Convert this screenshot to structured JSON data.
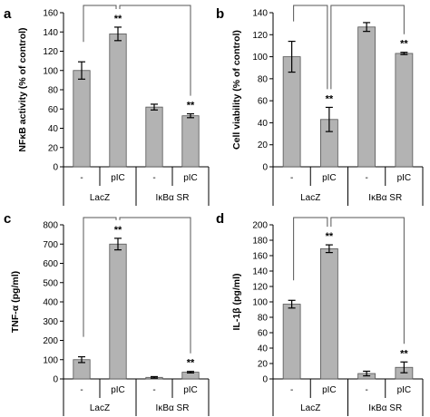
{
  "chart_data": [
    {
      "panel": "a",
      "type": "bar",
      "ylabel": "NFκB activity (% of control)",
      "ylim": [
        0,
        160
      ],
      "yticks": [
        0,
        20,
        40,
        60,
        80,
        100,
        120,
        140,
        160
      ],
      "categories": [
        "-",
        "pIC",
        "-",
        "pIC"
      ],
      "groups": [
        "LacZ",
        "IκBα SR"
      ],
      "values": [
        100,
        138,
        62,
        53
      ],
      "errors": [
        9,
        7,
        3,
        2
      ],
      "annotations": [
        "",
        "**",
        "",
        "**"
      ],
      "bar_color": "#b3b3b3",
      "brackets": true
    },
    {
      "panel": "b",
      "type": "bar",
      "ylabel": "Cell viability (% of control)",
      "ylim": [
        0,
        140
      ],
      "yticks": [
        0,
        20,
        40,
        60,
        80,
        100,
        120,
        140
      ],
      "categories": [
        "-",
        "pIC",
        "-",
        "pIC"
      ],
      "groups": [
        "LacZ",
        "IκBα SR"
      ],
      "values": [
        100,
        43,
        127,
        103
      ],
      "errors": [
        14,
        11,
        4,
        1
      ],
      "annotations": [
        "",
        "**",
        "",
        "**"
      ],
      "bar_color": "#b3b3b3",
      "brackets": true
    },
    {
      "panel": "c",
      "type": "bar",
      "ylabel": "TNF-α (pg/ml)",
      "ylim": [
        0,
        800
      ],
      "yticks": [
        0,
        100,
        200,
        300,
        400,
        500,
        600,
        700,
        800
      ],
      "categories": [
        "-",
        "pIC",
        "-",
        "pIC"
      ],
      "groups": [
        "LacZ",
        "IκBα SR"
      ],
      "values": [
        100,
        700,
        8,
        35
      ],
      "errors": [
        15,
        30,
        4,
        4
      ],
      "annotations": [
        "",
        "**",
        "",
        "**"
      ],
      "bar_color": "#b3b3b3",
      "brackets": true
    },
    {
      "panel": "d",
      "type": "bar",
      "ylabel": "IL-1β (pg/ml)",
      "ylim": [
        0,
        200
      ],
      "yticks": [
        0,
        20,
        40,
        60,
        80,
        100,
        120,
        140,
        160,
        180,
        200
      ],
      "categories": [
        "-",
        "pIC",
        "-",
        "pIC"
      ],
      "groups": [
        "LacZ",
        "IκBα SR"
      ],
      "values": [
        97,
        169,
        7,
        15
      ],
      "errors": [
        5,
        5,
        3,
        7
      ],
      "annotations": [
        "",
        "**",
        "",
        "**"
      ],
      "bar_color": "#b3b3b3",
      "brackets": true
    }
  ]
}
